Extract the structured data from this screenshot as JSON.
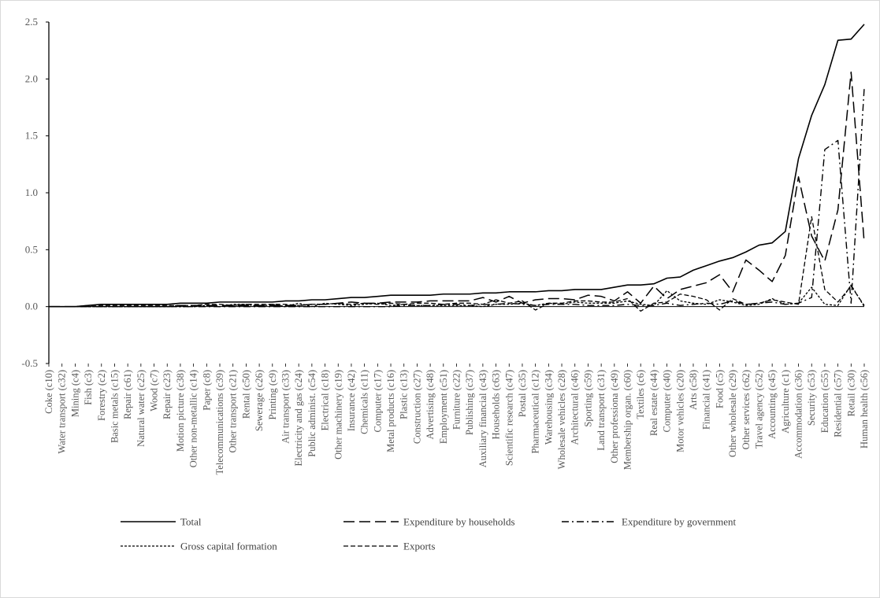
{
  "chart_data": {
    "type": "line",
    "title": "",
    "xlabel": "",
    "ylabel": "",
    "ylim": [
      -0.5,
      2.5
    ],
    "yticks": [
      -0.5,
      0.0,
      0.5,
      1.0,
      1.5,
      2.0,
      2.5
    ],
    "ytick_labels": [
      "-0.5",
      "0.0",
      "0.5",
      "1.0",
      "1.5",
      "2.0",
      "2.5"
    ],
    "grid": false,
    "legend_position": "bottom",
    "categories": [
      "Coke (c10)",
      "Water transport (c32)",
      "Mining (c4)",
      "Fish (c3)",
      "Forestry (c2)",
      "Basic metals (c15)",
      "Repair (c61)",
      "Natural water (c25)",
      "Wood (c7)",
      "Repair (c23)",
      "Motion picture (c38)",
      "Other non-metallic (c14)",
      "Paper (c8)",
      "Telecommunications (c39)",
      "Other transport (c21)",
      "Rental (c50)",
      "Sewerage (c26)",
      "Printing (c9)",
      "Air transport (c33)",
      "Electricity and gas (c24)",
      "Public administ. (c54)",
      "Electrical (c18)",
      "Other machinery (c19)",
      "Insurance (c42)",
      "Chemicals (c11)",
      "Computer (c17)",
      "Metal products (c16)",
      "Plastic (c13)",
      "Construction (c27)",
      "Advertising (c48)",
      "Employment (c51)",
      "Furniture (c22)",
      "Publishing (c37)",
      "Auxiliary financial (c43)",
      "Households (c63)",
      "Scientific research (c47)",
      "Postal (c35)",
      "Pharmaceutical (c12)",
      "Warehousing (c34)",
      "Wholesale vehicles (c28)",
      "Architectural (c46)",
      "Sporting (c59)",
      "Land transport (c31)",
      "Other professiona (c49)",
      "Membership organ. (c60)",
      "Textiles (c6)",
      "Real estate (c44)",
      "Computer (c40)",
      "Motor vehicles (c20)",
      "Arts (c58)",
      "Financial (c41)",
      "Food (c5)",
      "Other wholesale (c29)",
      "Other services (c62)",
      "Travel agency (c52)",
      "Accounting (c45)",
      "Agriculture (c1)",
      "Accommodation (c36)",
      "Security (c53)",
      "Education (c55)",
      "Residential (c57)",
      "Retail (c30)",
      "Human health (c56)"
    ],
    "series": [
      {
        "name": "Total",
        "color": "#000000",
        "dash": "solid",
        "values": [
          0.0,
          0.0,
          0.0,
          0.01,
          0.02,
          0.02,
          0.02,
          0.02,
          0.02,
          0.02,
          0.03,
          0.03,
          0.03,
          0.04,
          0.04,
          0.04,
          0.04,
          0.04,
          0.05,
          0.05,
          0.06,
          0.06,
          0.07,
          0.08,
          0.08,
          0.09,
          0.1,
          0.1,
          0.1,
          0.1,
          0.11,
          0.11,
          0.11,
          0.12,
          0.12,
          0.13,
          0.13,
          0.13,
          0.14,
          0.14,
          0.15,
          0.15,
          0.15,
          0.17,
          0.19,
          0.19,
          0.2,
          0.25,
          0.26,
          0.32,
          0.36,
          0.4,
          0.43,
          0.48,
          0.54,
          0.56,
          0.66,
          1.3,
          1.68,
          1.95,
          2.34,
          2.35,
          2.48
        ]
      },
      {
        "name": "Expenditure by households",
        "color": "#000000",
        "dash": "long-dash",
        "values": [
          0.0,
          0.0,
          0.0,
          0.0,
          0.0,
          0.0,
          0.0,
          0.0,
          0.0,
          0.0,
          0.01,
          0.01,
          0.01,
          0.01,
          0.01,
          0.01,
          0.01,
          0.01,
          0.01,
          0.01,
          0.02,
          0.02,
          0.03,
          0.04,
          0.03,
          0.03,
          0.04,
          0.04,
          0.04,
          0.05,
          0.05,
          0.05,
          0.05,
          0.08,
          0.04,
          0.09,
          0.03,
          0.06,
          0.07,
          0.07,
          0.06,
          0.1,
          0.09,
          0.05,
          0.13,
          0.03,
          0.18,
          0.07,
          0.15,
          0.18,
          0.21,
          0.28,
          0.13,
          0.41,
          0.32,
          0.22,
          0.45,
          1.14,
          0.62,
          0.4,
          0.85,
          2.06,
          0.56
        ]
      },
      {
        "name": "Expenditure by government",
        "color": "#000000",
        "dash": "dash-dot",
        "values": [
          0.0,
          0.0,
          0.0,
          0.0,
          0.0,
          0.0,
          0.0,
          0.0,
          0.0,
          0.0,
          0.0,
          0.0,
          0.0,
          0.0,
          0.0,
          0.0,
          0.0,
          0.0,
          0.0,
          0.0,
          0.0,
          0.0,
          0.0,
          0.0,
          0.0,
          0.0,
          0.0,
          0.01,
          0.01,
          0.01,
          0.02,
          0.02,
          0.01,
          0.02,
          0.02,
          0.03,
          0.02,
          0.01,
          0.02,
          0.02,
          0.02,
          0.01,
          0.01,
          0.01,
          0.02,
          0.01,
          0.01,
          0.03,
          0.01,
          0.02,
          0.03,
          0.02,
          0.05,
          0.02,
          0.03,
          0.04,
          0.02,
          0.03,
          0.08,
          1.38,
          1.46,
          0.03,
          1.92
        ]
      },
      {
        "name": "Gross capital formation",
        "color": "#000000",
        "dash": "short-dash",
        "values": [
          0.0,
          0.0,
          0.0,
          0.0,
          0.0,
          0.0,
          0.0,
          0.0,
          0.0,
          0.0,
          0.0,
          0.0,
          0.01,
          0.0,
          0.02,
          0.02,
          0.0,
          0.02,
          0.0,
          0.03,
          0.0,
          0.03,
          0.02,
          0.01,
          0.02,
          0.03,
          0.01,
          0.02,
          0.01,
          0.01,
          0.01,
          0.01,
          0.01,
          0.0,
          0.02,
          0.02,
          0.03,
          0.01,
          0.03,
          0.02,
          0.04,
          0.03,
          0.03,
          0.03,
          0.05,
          0.02,
          0.01,
          0.14,
          0.05,
          0.03,
          0.02,
          0.06,
          0.04,
          0.01,
          0.02,
          0.07,
          0.02,
          0.03,
          0.17,
          0.02,
          0.01,
          0.19,
          0.0
        ]
      },
      {
        "name": "Exports",
        "color": "#000000",
        "dash": "dash",
        "values": [
          0.0,
          0.0,
          0.0,
          0.01,
          0.01,
          0.01,
          0.01,
          0.01,
          0.01,
          0.01,
          0.01,
          0.01,
          0.02,
          0.02,
          0.01,
          0.02,
          0.02,
          0.02,
          0.02,
          0.01,
          0.02,
          0.02,
          0.03,
          0.02,
          0.03,
          0.02,
          0.03,
          0.02,
          0.03,
          0.03,
          0.02,
          0.03,
          0.03,
          0.02,
          0.06,
          0.03,
          0.05,
          -0.03,
          0.03,
          0.03,
          0.05,
          0.05,
          0.04,
          0.04,
          0.07,
          -0.04,
          0.03,
          0.04,
          0.11,
          0.09,
          0.06,
          -0.03,
          0.07,
          0.02,
          0.03,
          0.06,
          0.04,
          0.02,
          0.79,
          0.15,
          0.04,
          0.18,
          0.01
        ]
      }
    ]
  }
}
